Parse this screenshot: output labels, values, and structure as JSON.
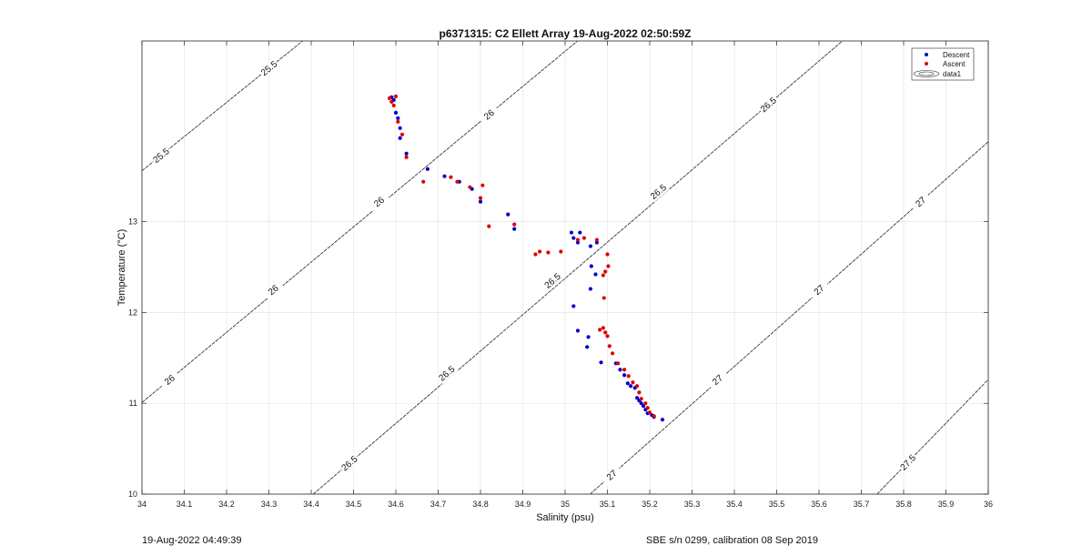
{
  "chart_data": {
    "type": "scatter",
    "title": "p6371315: C2 Ellett Array 19-Aug-2022 02:50:59Z",
    "xlabel": "Salinity (psu)",
    "ylabel": "Temperature (°C)",
    "xlim": [
      34,
      36
    ],
    "ylim": [
      10,
      14.99
    ],
    "xticks": [
      "34",
      "34.1",
      "34.2",
      "34.3",
      "34.4",
      "34.5",
      "34.6",
      "34.7",
      "34.8",
      "34.9",
      "35",
      "35.1",
      "35.2",
      "35.3",
      "35.4",
      "35.5",
      "35.6",
      "35.7",
      "35.8",
      "35.9",
      "36"
    ],
    "yticks": [
      "10",
      "11",
      "12",
      "13"
    ],
    "grid": true,
    "legend_position": "top-right",
    "legend": [
      "Descent",
      "Ascent",
      "data1"
    ],
    "series": [
      {
        "name": "Descent",
        "color": "#0000cc",
        "points": [
          [
            34.59,
            14.37
          ],
          [
            34.595,
            14.34
          ],
          [
            34.6,
            14.2
          ],
          [
            34.605,
            14.14
          ],
          [
            34.61,
            14.03
          ],
          [
            34.61,
            13.92
          ],
          [
            34.625,
            13.75
          ],
          [
            34.675,
            13.58
          ],
          [
            34.715,
            13.5
          ],
          [
            34.75,
            13.44
          ],
          [
            34.78,
            13.36
          ],
          [
            34.8,
            13.22
          ],
          [
            34.865,
            13.08
          ],
          [
            34.88,
            12.92
          ],
          [
            35.015,
            12.88
          ],
          [
            35.02,
            12.82
          ],
          [
            35.03,
            12.77
          ],
          [
            35.035,
            12.88
          ],
          [
            35.06,
            12.73
          ],
          [
            35.075,
            12.77
          ],
          [
            35.062,
            12.51
          ],
          [
            35.072,
            12.42
          ],
          [
            35.06,
            12.26
          ],
          [
            35.02,
            12.07
          ],
          [
            35.03,
            11.8
          ],
          [
            35.055,
            11.73
          ],
          [
            35.052,
            11.62
          ],
          [
            35.085,
            11.45
          ],
          [
            35.12,
            11.44
          ],
          [
            35.13,
            11.37
          ],
          [
            35.14,
            11.31
          ],
          [
            35.148,
            11.22
          ],
          [
            35.155,
            11.19
          ],
          [
            35.165,
            11.17
          ],
          [
            35.17,
            11.06
          ],
          [
            35.175,
            11.03
          ],
          [
            35.18,
            11.0
          ],
          [
            35.185,
            10.97
          ],
          [
            35.19,
            10.93
          ],
          [
            35.195,
            10.89
          ],
          [
            35.205,
            10.87
          ],
          [
            35.21,
            10.85
          ],
          [
            35.23,
            10.82
          ]
        ]
      },
      {
        "name": "Ascent",
        "color": "#dd0000",
        "points": [
          [
            34.585,
            14.36
          ],
          [
            34.59,
            14.32
          ],
          [
            34.595,
            14.28
          ],
          [
            34.6,
            14.38
          ],
          [
            34.605,
            14.1
          ],
          [
            34.615,
            13.96
          ],
          [
            34.625,
            13.71
          ],
          [
            34.665,
            13.44
          ],
          [
            34.73,
            13.49
          ],
          [
            34.745,
            13.44
          ],
          [
            34.775,
            13.38
          ],
          [
            34.805,
            13.4
          ],
          [
            34.8,
            13.26
          ],
          [
            34.82,
            12.95
          ],
          [
            34.88,
            12.97
          ],
          [
            34.93,
            12.64
          ],
          [
            34.94,
            12.67
          ],
          [
            34.96,
            12.66
          ],
          [
            34.99,
            12.67
          ],
          [
            35.03,
            12.8
          ],
          [
            35.045,
            12.82
          ],
          [
            35.075,
            12.8
          ],
          [
            35.1,
            12.64
          ],
          [
            35.095,
            12.45
          ],
          [
            35.102,
            12.51
          ],
          [
            35.09,
            12.41
          ],
          [
            35.092,
            12.16
          ],
          [
            35.082,
            11.81
          ],
          [
            35.09,
            11.83
          ],
          [
            35.095,
            11.78
          ],
          [
            35.1,
            11.74
          ],
          [
            35.105,
            11.63
          ],
          [
            35.112,
            11.55
          ],
          [
            35.125,
            11.44
          ],
          [
            35.14,
            11.37
          ],
          [
            35.15,
            11.3
          ],
          [
            35.16,
            11.23
          ],
          [
            35.17,
            11.19
          ],
          [
            35.175,
            11.12
          ],
          [
            35.18,
            11.05
          ],
          [
            35.19,
            11.0
          ],
          [
            35.195,
            10.95
          ],
          [
            35.2,
            10.9
          ],
          [
            35.21,
            10.86
          ]
        ]
      }
    ],
    "contours": [
      {
        "label": "25.5",
        "label_positions": [
          [
            34.3,
            14.69
          ],
          [
            34.045,
            13.73
          ]
        ]
      },
      {
        "label": "26",
        "label_positions": [
          [
            34.82,
            14.18
          ],
          [
            34.56,
            13.22
          ],
          [
            34.31,
            12.25
          ],
          [
            34.065,
            11.26
          ]
        ]
      },
      {
        "label": "26.5",
        "label_positions": [
          [
            35.48,
            14.29
          ],
          [
            35.22,
            13.33
          ],
          [
            34.97,
            12.35
          ],
          [
            34.72,
            11.33
          ],
          [
            34.49,
            10.34
          ]
        ]
      },
      {
        "label": "27",
        "label_positions": [
          [
            35.84,
            13.22
          ],
          [
            35.6,
            12.25
          ],
          [
            35.36,
            11.26
          ],
          [
            35.11,
            10.21
          ]
        ]
      },
      {
        "label": "27.5",
        "label_positions": [
          [
            35.81,
            10.35
          ]
        ]
      }
    ]
  },
  "footer": {
    "left": "19-Aug-2022 04:49:39",
    "right": "SBE s/n 0299, calibration 08 Sep 2019"
  }
}
